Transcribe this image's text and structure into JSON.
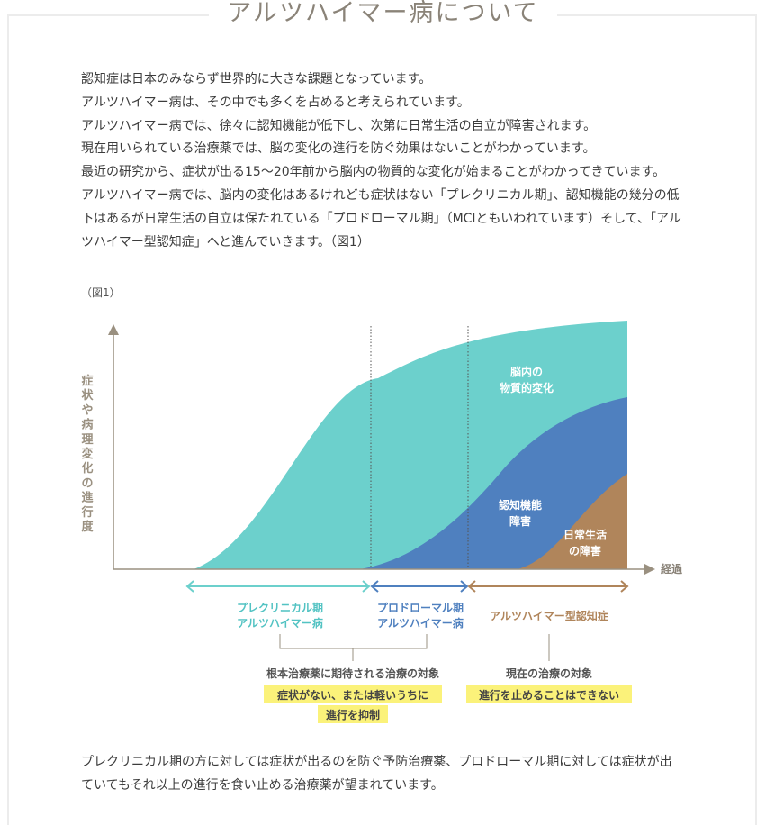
{
  "page": {
    "title": "アルツハイマー病について",
    "intro_lines": [
      "認知症は日本のみならず世界的に大きな課題となっています。",
      "アルツハイマー病は、その中でも多くを占めると考えられています。",
      "アルツハイマー病では、徐々に認知機能が低下し、次第に日常生活の自立が障害されます。",
      "現在用いられている治療薬では、脳の変化の進行を防ぐ効果はないことがわかっています。",
      "最近の研究から、症状が出る15〜20年前から脳内の物質的な変化が始まることがわかってきています。",
      "アルツハイマー病では、脳内の変化はあるけれども症状はない「プレクリニカル期」、認知機能の幾分の低下はあるが日常生活の自立は保たれている「プロドローマル期」（MCIともいわれています）そして、「アルツハイマー型認知症」へと進んでいきます。（図1）"
    ],
    "figure_label": "（図1）",
    "outro_lines": [
      "プレクリニカル期の方に対しては症状が出るのを防ぐ予防治療薬、プロドローマル期に対しては症状が出ていてもそれ以上の進行を食い止める治療薬が望まれています。"
    ]
  },
  "figure": {
    "y_axis_label": "症状や病理変化の進行度",
    "x_axis_label": "経過",
    "areas": [
      {
        "label_lines": [
          "脳内の",
          "物質的変化"
        ],
        "color": "#6cd0cc"
      },
      {
        "label_lines": [
          "認知機能",
          "障害"
        ],
        "color": "#4f80bf"
      },
      {
        "label_lines": [
          "日常生活",
          "の障害"
        ],
        "color": "#b0855b"
      }
    ],
    "stages": [
      {
        "label_lines": [
          "プレクリニカル期",
          "アルツハイマー病"
        ],
        "color": "#53c3c3"
      },
      {
        "label_lines": [
          "プロドローマル期",
          "アルツハイマー病"
        ],
        "color": "#4f80bf"
      },
      {
        "label_lines": [
          "アルツハイマー型認知症"
        ],
        "color": "#b0855b"
      }
    ],
    "notes": [
      {
        "heading": "根本治療薬に期待される治療の対象",
        "highlights": [
          "症状がない、または軽いうちに",
          "進行を抑制"
        ]
      },
      {
        "heading": "現在の治療の対象",
        "highlights": [
          "進行を止めることはできない"
        ]
      }
    ],
    "highlight_color": "#fbf27a",
    "axis_color": "#9a9080"
  }
}
